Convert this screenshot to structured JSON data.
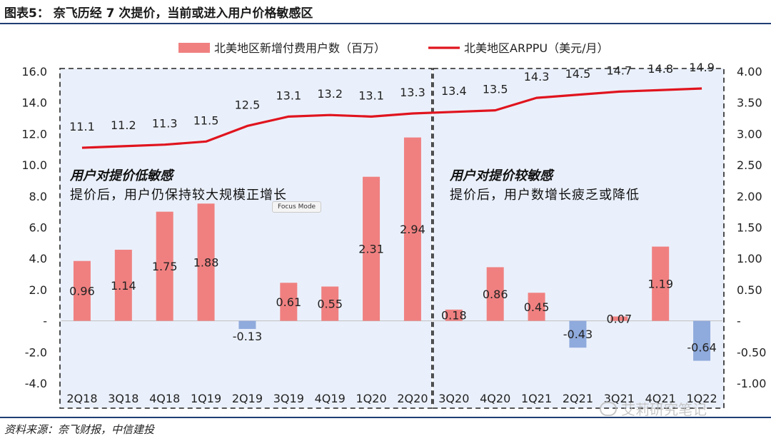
{
  "header": {
    "title": "图表5： 奈飞历经 7 次提价，当前或进入用户价格敏感区"
  },
  "footer": {
    "source": "资料来源：奈飞财报，中信建投"
  },
  "watermark": {
    "text": "艾莉研究笔记"
  },
  "tooltip": {
    "label": "Focus Mode"
  },
  "annotations": {
    "left": {
      "title": "用户对提价低敏感",
      "text": "提价后，用户仍保持较大规模正增长"
    },
    "right": {
      "title": "用户对提价较敏感",
      "text": "提价后，用户数增长疲乏或降低"
    }
  },
  "colors": {
    "bar_positive": "#f08080",
    "bar_negative": "#8faadc",
    "line": "#e0141e",
    "rule": "#1f3f74"
  },
  "chart_data": {
    "type": "bar+line",
    "categories": [
      "2Q18",
      "3Q18",
      "4Q18",
      "1Q19",
      "2Q19",
      "3Q19",
      "4Q19",
      "1Q20",
      "2Q20",
      "3Q20",
      "4Q20",
      "1Q21",
      "2Q21",
      "3Q21",
      "4Q21",
      "1Q22"
    ],
    "series": [
      {
        "name": "北美地区新增付费用户数（百万）",
        "type": "bar",
        "axis": "right",
        "values": [
          0.96,
          1.14,
          1.75,
          1.88,
          -0.13,
          0.61,
          0.55,
          2.31,
          2.94,
          0.18,
          0.86,
          0.45,
          -0.43,
          0.07,
          1.19,
          -0.64
        ],
        "labels": [
          "0.96",
          "1.14",
          "1.75",
          "1.88",
          "-0.13",
          "0.61",
          "0.55",
          "2.31",
          "2.94",
          "0.18",
          "0.86",
          "0.45",
          "-0.43",
          "0.07",
          "1.19",
          "-0.64"
        ]
      },
      {
        "name": "北美地区ARPPU（美元/月）",
        "type": "line",
        "axis": "left",
        "values": [
          11.1,
          11.2,
          11.3,
          11.5,
          12.5,
          13.1,
          13.2,
          13.1,
          13.3,
          13.4,
          13.5,
          14.3,
          14.5,
          14.7,
          14.8,
          14.9
        ],
        "labels": [
          "11.1",
          "11.2",
          "11.3",
          "11.5",
          "12.5",
          "13.1",
          "13.2",
          "13.1",
          "13.3",
          "13.4",
          "13.5",
          "14.3",
          "14.5",
          "14.7",
          "14.8",
          "14.9"
        ]
      }
    ],
    "y_left": {
      "min": -4.0,
      "max": 16.0,
      "ticks": [
        "-4.0",
        "-2.0",
        "-",
        "2.0",
        "4.0",
        "6.0",
        "8.0",
        "10.0",
        "12.0",
        "14.0",
        "16.0"
      ]
    },
    "y_right": {
      "min": -1.0,
      "max": 4.0,
      "ticks": [
        "-1.00",
        "-0.50",
        "-",
        "0.50",
        "1.00",
        "1.50",
        "2.00",
        "2.50",
        "3.00",
        "3.50",
        "4.00"
      ]
    },
    "legend_position": "top",
    "regions": [
      {
        "from": "2Q18",
        "to": "2Q20",
        "style": "dashed",
        "fill": "#eaf0fb"
      },
      {
        "from": "3Q20",
        "to": "1Q22",
        "style": "dashed",
        "fill": "#eaf0fb"
      }
    ]
  }
}
